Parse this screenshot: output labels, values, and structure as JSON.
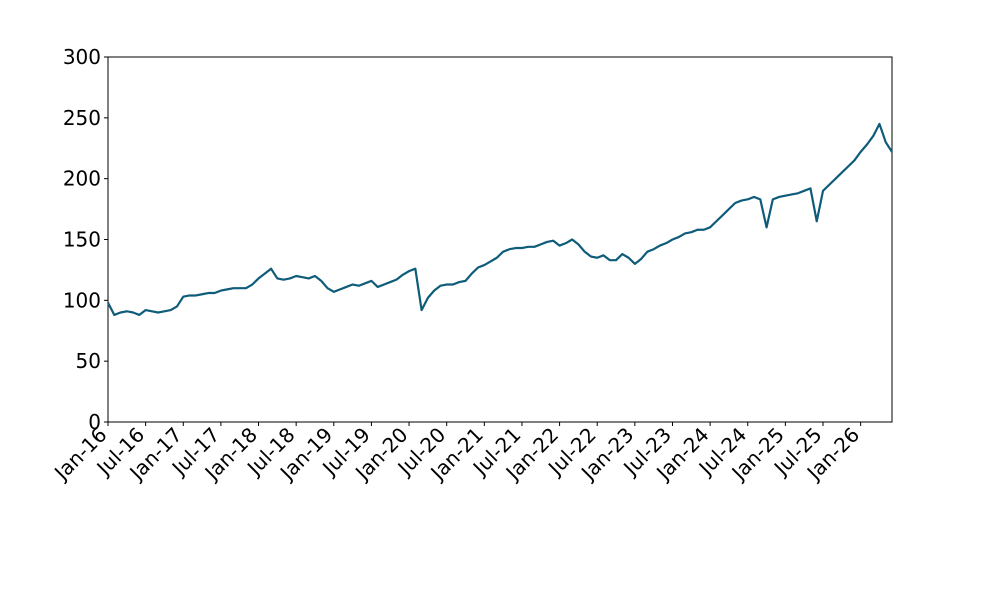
{
  "chart_data": {
    "type": "line",
    "x": [
      "2016-01",
      "2016-02",
      "2016-03",
      "2016-04",
      "2016-05",
      "2016-06",
      "2016-07",
      "2016-08",
      "2016-09",
      "2016-10",
      "2016-11",
      "2016-12",
      "2017-01",
      "2017-02",
      "2017-03",
      "2017-04",
      "2017-05",
      "2017-06",
      "2017-07",
      "2017-08",
      "2017-09",
      "2017-10",
      "2017-11",
      "2017-12",
      "2018-01",
      "2018-02",
      "2018-03",
      "2018-04",
      "2018-05",
      "2018-06",
      "2018-07",
      "2018-08",
      "2018-09",
      "2018-10",
      "2018-11",
      "2018-12",
      "2019-01",
      "2019-02",
      "2019-03",
      "2019-04",
      "2019-05",
      "2019-06",
      "2019-07",
      "2019-08",
      "2019-09",
      "2019-10",
      "2019-11",
      "2019-12",
      "2020-01",
      "2020-02",
      "2020-03",
      "2020-04",
      "2020-05",
      "2020-06",
      "2020-07",
      "2020-08",
      "2020-09",
      "2020-10",
      "2020-11",
      "2020-12",
      "2021-01",
      "2021-02",
      "2021-03",
      "2021-04",
      "2021-05",
      "2021-06",
      "2021-07",
      "2021-08",
      "2021-09",
      "2021-10",
      "2021-11",
      "2021-12",
      "2022-01",
      "2022-02",
      "2022-03",
      "2022-04",
      "2022-05",
      "2022-06",
      "2022-07",
      "2022-08",
      "2022-09",
      "2022-10",
      "2022-11",
      "2022-12",
      "2023-01",
      "2023-02",
      "2023-03",
      "2023-04",
      "2023-05",
      "2023-06",
      "2023-07",
      "2023-08",
      "2023-09",
      "2023-10",
      "2023-11",
      "2023-12",
      "2024-01",
      "2024-02",
      "2024-03",
      "2024-04",
      "2024-05",
      "2024-06",
      "2024-07",
      "2024-08",
      "2024-09",
      "2024-10",
      "2024-11",
      "2024-12",
      "2025-01",
      "2025-02",
      "2025-03",
      "2025-04",
      "2025-05",
      "2025-06",
      "2025-07",
      "2025-08",
      "2025-09",
      "2025-10",
      "2025-11",
      "2025-12",
      "2026-01",
      "2026-02",
      "2026-03",
      "2026-04",
      "2026-05",
      "2026-06"
    ],
    "series": [
      {
        "color": "#0e5c7a",
        "values": [
          98,
          88,
          90,
          91,
          90,
          88,
          92,
          91,
          90,
          91,
          92,
          95,
          103,
          104,
          104,
          105,
          106,
          106,
          108,
          109,
          110,
          110,
          110,
          113,
          118,
          122,
          126,
          118,
          117,
          118,
          120,
          119,
          118,
          120,
          116,
          110,
          107,
          109,
          111,
          113,
          112,
          114,
          116,
          111,
          113,
          115,
          117,
          121,
          124,
          126,
          92,
          102,
          108,
          112,
          113,
          113,
          115,
          116,
          122,
          127,
          129,
          132,
          135,
          140,
          142,
          143,
          143,
          144,
          144,
          146,
          148,
          149,
          145,
          147,
          150,
          146,
          140,
          136,
          135,
          137,
          133,
          133,
          138,
          135,
          130,
          134,
          140,
          142,
          145,
          147,
          150,
          152,
          155,
          156,
          158,
          158,
          160,
          165,
          170,
          175,
          180,
          182,
          183,
          185,
          183,
          160,
          183,
          185,
          186,
          187,
          188,
          190,
          192,
          165,
          190,
          195,
          200,
          205,
          210,
          215,
          222,
          228,
          235,
          245,
          230,
          222
        ]
      }
    ],
    "xlim": [
      "2016-01",
      "2026-06"
    ],
    "xticks": [
      {
        "value": "2016-01",
        "label": "Jan-16"
      },
      {
        "value": "2016-07",
        "label": "Jul-16"
      },
      {
        "value": "2017-01",
        "label": "Jan-17"
      },
      {
        "value": "2017-07",
        "label": "Jul-17"
      },
      {
        "value": "2018-01",
        "label": "Jan-18"
      },
      {
        "value": "2018-07",
        "label": "Jul-18"
      },
      {
        "value": "2019-01",
        "label": "Jan-19"
      },
      {
        "value": "2019-07",
        "label": "Jul-19"
      },
      {
        "value": "2020-01",
        "label": "Jan-20"
      },
      {
        "value": "2020-07",
        "label": "Jul-20"
      },
      {
        "value": "2021-01",
        "label": "Jan-21"
      },
      {
        "value": "2021-07",
        "label": "Jul-21"
      },
      {
        "value": "2022-01",
        "label": "Jan-22"
      },
      {
        "value": "2022-07",
        "label": "Jul-22"
      },
      {
        "value": "2023-01",
        "label": "Jan-23"
      },
      {
        "value": "2023-07",
        "label": "Jul-23"
      },
      {
        "value": "2024-01",
        "label": "Jan-24"
      },
      {
        "value": "2024-07",
        "label": "Jul-24"
      },
      {
        "value": "2025-01",
        "label": "Jan-25"
      },
      {
        "value": "2025-07",
        "label": "Jul-25"
      },
      {
        "value": "2026-01",
        "label": "Jan-26"
      }
    ],
    "ylim": [
      0,
      300
    ],
    "yticks": [
      0,
      50,
      100,
      150,
      200,
      250,
      300
    ],
    "grid": false
  }
}
